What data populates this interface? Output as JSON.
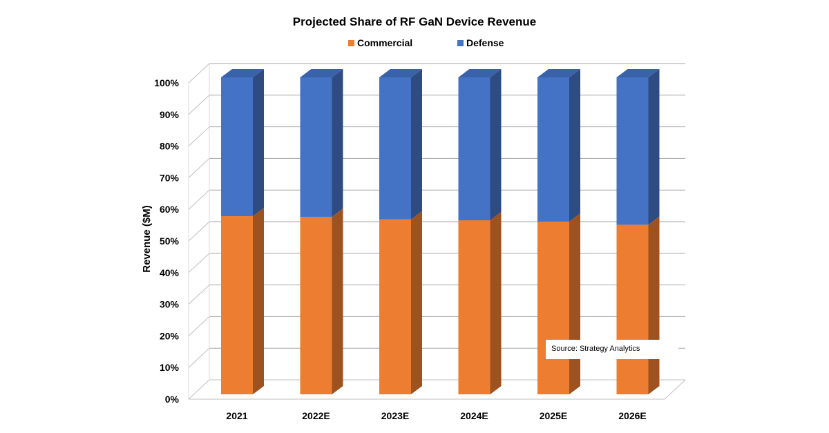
{
  "chart_data": {
    "type": "bar",
    "stacked": true,
    "three_d": true,
    "title": "Projected Share of RF GaN Device Revenue",
    "xlabel": "",
    "ylabel": "Revenue ($M)",
    "ylim": [
      0,
      100
    ],
    "yticks": [
      "0%",
      "10%",
      "20%",
      "30%",
      "40%",
      "50%",
      "60%",
      "70%",
      "80%",
      "90%",
      "100%"
    ],
    "categories": [
      "2021",
      "2022E",
      "2023E",
      "2024E",
      "2025E",
      "2026E"
    ],
    "series": [
      {
        "name": "Commercial",
        "color": "#ED7D31",
        "values": [
          56.2,
          56.0,
          55.2,
          54.9,
          54.5,
          53.5
        ]
      },
      {
        "name": "Defense",
        "color": "#4472C4",
        "values": [
          43.8,
          44.0,
          44.8,
          45.1,
          45.5,
          46.5
        ]
      }
    ],
    "legend": "top",
    "grid": true,
    "annotation": "Source: Strategy Analytics"
  }
}
